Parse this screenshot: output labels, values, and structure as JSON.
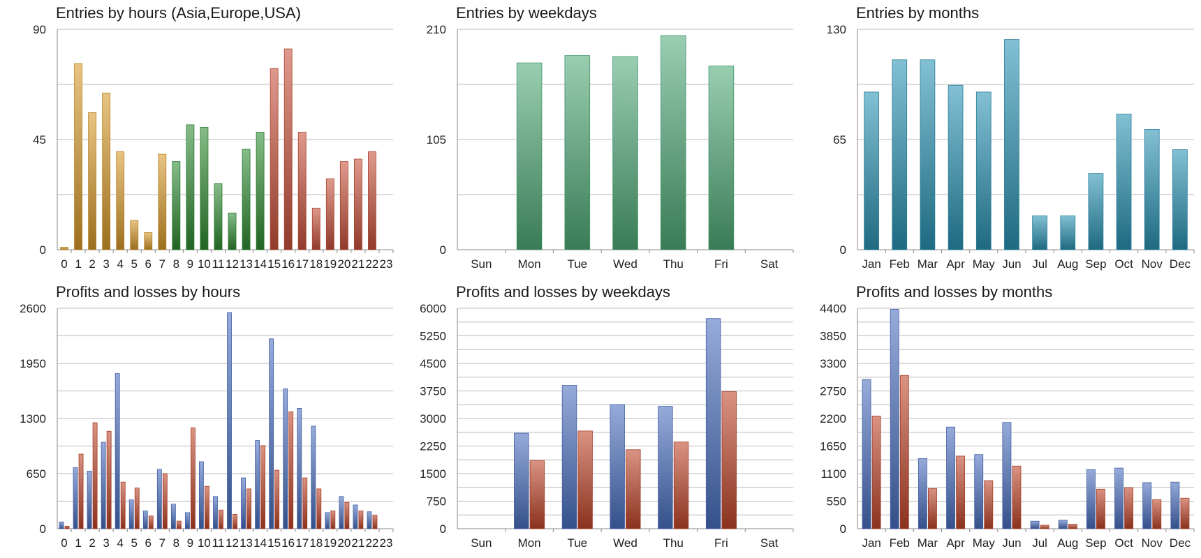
{
  "charts": [
    {
      "id": "c1",
      "chart_data": {
        "type": "bar",
        "title": "Entries by hours (Asia,Europe,USA)",
        "categories": [
          "0",
          "1",
          "2",
          "3",
          "4",
          "5",
          "6",
          "7",
          "8",
          "9",
          "10",
          "11",
          "12",
          "13",
          "14",
          "15",
          "16",
          "17",
          "18",
          "19",
          "20",
          "21",
          "22",
          "23"
        ],
        "x_tick_labels": [
          "0",
          "1",
          "2",
          "3",
          "4",
          "5",
          "6",
          "7",
          "8",
          "9",
          "10",
          "11",
          "12",
          "13",
          "14",
          "15",
          "16",
          "17",
          "18",
          "19",
          "20",
          "21",
          "22",
          "23"
        ],
        "series": [
          {
            "values": [
              1,
              76,
              56,
              64,
              40,
              12,
              7,
              39,
              36,
              51,
              50,
              27,
              15,
              41,
              48,
              74,
              82,
              48,
              17,
              29,
              36,
              37,
              40,
              0
            ]
          }
        ],
        "bar_colors": [
          "#d89a2a",
          "#d89a2a",
          "#d89a2a",
          "#d89a2a",
          "#d89a2a",
          "#d89a2a",
          "#d89a2a",
          "#d89a2a",
          "#2e8b32",
          "#2e8b32",
          "#2e8b32",
          "#2e8b32",
          "#2e8b32",
          "#2e8b32",
          "#2e8b32",
          "#c8503a",
          "#c8503a",
          "#c8503a",
          "#c8503a",
          "#c8503a",
          "#c8503a",
          "#c8503a",
          "#c8503a",
          "#c8503a"
        ],
        "y_ticks": [
          "0",
          "45",
          "90"
        ],
        "ylim": [
          0,
          90
        ],
        "grid": true
      }
    },
    {
      "id": "c2",
      "chart_data": {
        "type": "bar",
        "title": "Entries by weekdays",
        "categories": [
          "Sun",
          "Mon",
          "Tue",
          "Wed",
          "Thu",
          "Fri",
          "Sat"
        ],
        "x_tick_labels": [
          "Sun",
          "Mon",
          "Tue",
          "Wed",
          "Thu",
          "Fri",
          "Sat"
        ],
        "series": [
          {
            "values": [
              0,
              178,
              185,
              184,
              204,
              175,
              0
            ]
          }
        ],
        "bar_colors": [
          "#4fab79"
        ],
        "y_ticks": [
          "0",
          "105",
          "210"
        ],
        "ylim": [
          0,
          210
        ],
        "grid": true
      }
    },
    {
      "id": "c3",
      "chart_data": {
        "type": "bar",
        "title": "Entries by months",
        "categories": [
          "Jan",
          "Feb",
          "Mar",
          "Apr",
          "May",
          "Jun",
          "Jul",
          "Aug",
          "Sep",
          "Oct",
          "Nov",
          "Dec"
        ],
        "x_tick_labels": [
          "Jan",
          "Feb",
          "Mar",
          "Apr",
          "May",
          "Jun",
          "Jul",
          "Aug",
          "Sep",
          "Oct",
          "Nov",
          "Dec"
        ],
        "series": [
          {
            "values": [
              93,
              112,
              112,
              97,
              93,
              124,
              20,
              20,
              45,
              80,
              71,
              59
            ]
          }
        ],
        "bar_colors": [
          "#2a93b3"
        ],
        "y_ticks": [
          "0",
          "65",
          "130"
        ],
        "ylim": [
          0,
          130
        ],
        "grid": true
      }
    },
    {
      "id": "c4",
      "chart_data": {
        "type": "bar",
        "title": "Profits and losses by hours",
        "categories": [
          "0",
          "1",
          "2",
          "3",
          "4",
          "5",
          "6",
          "7",
          "8",
          "9",
          "10",
          "11",
          "12",
          "13",
          "14",
          "15",
          "16",
          "17",
          "18",
          "19",
          "20",
          "21",
          "22",
          "23"
        ],
        "x_tick_labels": [
          "0",
          "1",
          "2",
          "3",
          "4",
          "5",
          "6",
          "7",
          "8",
          "9",
          "10",
          "11",
          "12",
          "13",
          "14",
          "15",
          "16",
          "17",
          "18",
          "19",
          "20",
          "21",
          "22",
          "23"
        ],
        "series": [
          {
            "values": [
              80,
              720,
              680,
              1020,
              1830,
              340,
              210,
              700,
              290,
              190,
              790,
              380,
              2550,
              600,
              1040,
              2240,
              1650,
              1420,
              1210,
              190,
              380,
              280,
              200,
              0
            ]
          },
          {
            "values": [
              30,
              880,
              1250,
              1150,
              550,
              480,
              150,
              650,
              90,
              1190,
              500,
              220,
              170,
              470,
              980,
              690,
              1380,
              600,
              470,
              210,
              310,
              210,
              160,
              0
            ]
          }
        ],
        "series_colors": [
          "#4a6fc0",
          "#c0452a"
        ],
        "y_ticks": [
          "0",
          "650",
          "1300",
          "1950",
          "2600"
        ],
        "ylim": [
          0,
          2600
        ],
        "grid": true
      }
    },
    {
      "id": "c5",
      "chart_data": {
        "type": "bar",
        "title": "Profits and losses by weekdays",
        "categories": [
          "Sun",
          "Mon",
          "Tue",
          "Wed",
          "Thu",
          "Fri",
          "Sat"
        ],
        "x_tick_labels": [
          "Sun",
          "Mon",
          "Tue",
          "Wed",
          "Thu",
          "Fri",
          "Sat"
        ],
        "series": [
          {
            "values": [
              0,
              2600,
              3900,
              3380,
              3330,
              5720,
              0
            ]
          },
          {
            "values": [
              0,
              1850,
              2660,
              2150,
              2360,
              3730,
              0
            ]
          }
        ],
        "series_colors": [
          "#4a6fc0",
          "#c0452a"
        ],
        "y_ticks": [
          "0",
          "750",
          "1500",
          "2250",
          "3000",
          "3750",
          "4500",
          "5250",
          "6000"
        ],
        "ylim": [
          0,
          6000
        ],
        "grid": true
      }
    },
    {
      "id": "c6",
      "chart_data": {
        "type": "bar",
        "title": "Profits and losses by months",
        "categories": [
          "Jan",
          "Feb",
          "Mar",
          "Apr",
          "May",
          "Jun",
          "Jul",
          "Aug",
          "Sep",
          "Oct",
          "Nov",
          "Dec"
        ],
        "x_tick_labels": [
          "Jan",
          "Feb",
          "Mar",
          "Apr",
          "May",
          "Jun",
          "Jul",
          "Aug",
          "Sep",
          "Oct",
          "Nov",
          "Dec"
        ],
        "series": [
          {
            "values": [
              2980,
              4380,
              1400,
              2030,
              1480,
              2120,
              150,
              170,
              1180,
              1210,
              920,
              930
            ]
          },
          {
            "values": [
              2250,
              3060,
              800,
              1450,
              960,
              1250,
              70,
              90,
              790,
              820,
              580,
              610
            ]
          }
        ],
        "series_colors": [
          "#4a6fc0",
          "#c0452a"
        ],
        "y_ticks": [
          "0",
          "550",
          "1100",
          "1650",
          "2200",
          "2750",
          "3300",
          "3850",
          "4400"
        ],
        "ylim": [
          0,
          4400
        ],
        "grid": true
      }
    }
  ]
}
